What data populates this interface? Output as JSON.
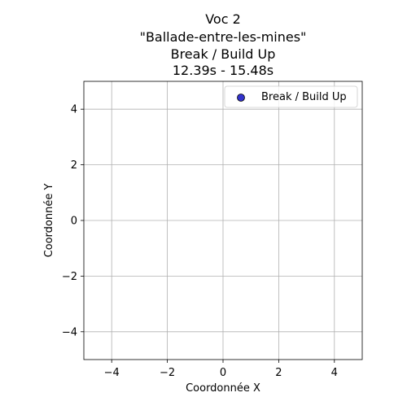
{
  "chart_data": {
    "type": "scatter",
    "title_lines": [
      "Voc 2",
      "\"Ballade-entre-les-mines\"",
      "Break / Build Up",
      "12.39s - 15.48s"
    ],
    "xlabel": "Coordonnée X",
    "ylabel": "Coordonnée Y",
    "xlim": [
      -5,
      5
    ],
    "ylim": [
      -5,
      5
    ],
    "xticks": [
      -4,
      -2,
      0,
      2,
      4
    ],
    "yticks": [
      -4,
      -2,
      0,
      2,
      4
    ],
    "xtick_labels": [
      "−4",
      "−2",
      "0",
      "2",
      "4"
    ],
    "ytick_labels": [
      "−4",
      "−2",
      "0",
      "2",
      "4"
    ],
    "grid": true,
    "legend_position": "top-right",
    "series": [
      {
        "name": "Break / Build Up",
        "color": "#3333cc",
        "points": []
      }
    ]
  }
}
